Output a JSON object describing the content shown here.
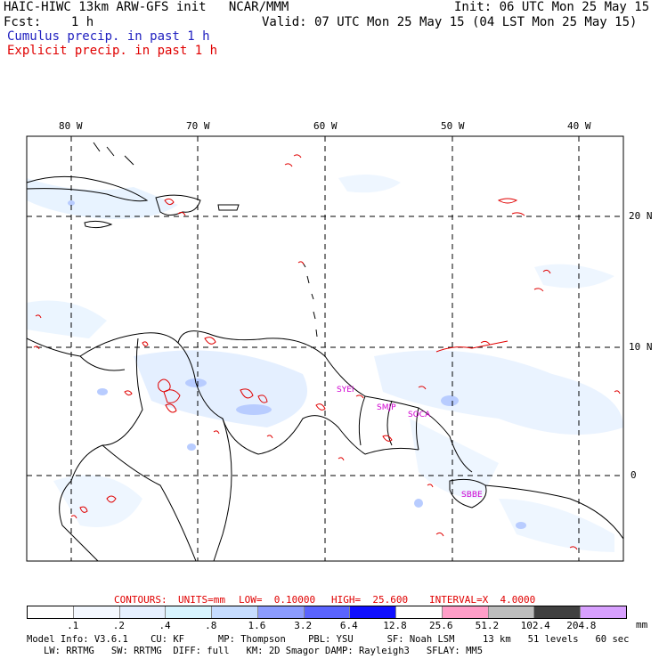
{
  "header": {
    "left_line1": "HAIC-HIWC 13km ARW-GFS init   NCAR/MMM",
    "right_line1": "Init: 06 UTC Mon 25 May 15",
    "left_line2": "Fcst:    1 h",
    "right_line2": "Valid: 07 UTC Mon 25 May 15 (04 LST Mon 25 May 15)",
    "line3": "Cumulus precip. in past 1 h",
    "line4": "Explicit precip. in past 1 h"
  },
  "colors": {
    "cumulus_text": "#2020c0",
    "explicit_text": "#e00000",
    "station": "#d000d0",
    "explicit_contour": "#e00000",
    "coast": "#000000"
  },
  "longitude_labels": [
    "80 W",
    "70 W",
    "60 W",
    "50 W",
    "40 W"
  ],
  "latitude_labels": [
    "20 N",
    "10 N",
    "0"
  ],
  "stations": [
    "SYEI",
    "SMJP",
    "SOCA",
    "SBBE"
  ],
  "contours_line": {
    "contours": "CONTOURS:",
    "units": "UNITS=mm",
    "low": "LOW=  0.10000",
    "high": "HIGH=  25.600",
    "interval": "INTERVAL=X  4.0000"
  },
  "legend": {
    "labels": [
      ".1",
      ".2",
      ".4",
      ".8",
      "1.6",
      "3.2",
      "6.4",
      "12.8",
      "25.6",
      "51.2",
      "102.4",
      "204.8"
    ],
    "colors": [
      "#ffffff",
      "#f4f8ff",
      "#e6f0ff",
      "#d8f4ff",
      "#c6dcff",
      "#8c9cff",
      "#5a64ff",
      "#1010ff",
      "#ffffff",
      "#ff9ec8",
      "#bdbdbd",
      "#404040",
      "#d8a0ff"
    ],
    "unit": "mm"
  },
  "model_info": {
    "line1": "Model Info: V3.6.1    CU: KF      MP: Thompson    PBL: YSU      SF: Noah LSM     13 km   51 levels   60 sec",
    "line2": "   LW: RRTMG   SW: RRTMG  DIFF: full   KM: 2D Smagor DAMP: Rayleigh3   SFLAY: MM5"
  }
}
